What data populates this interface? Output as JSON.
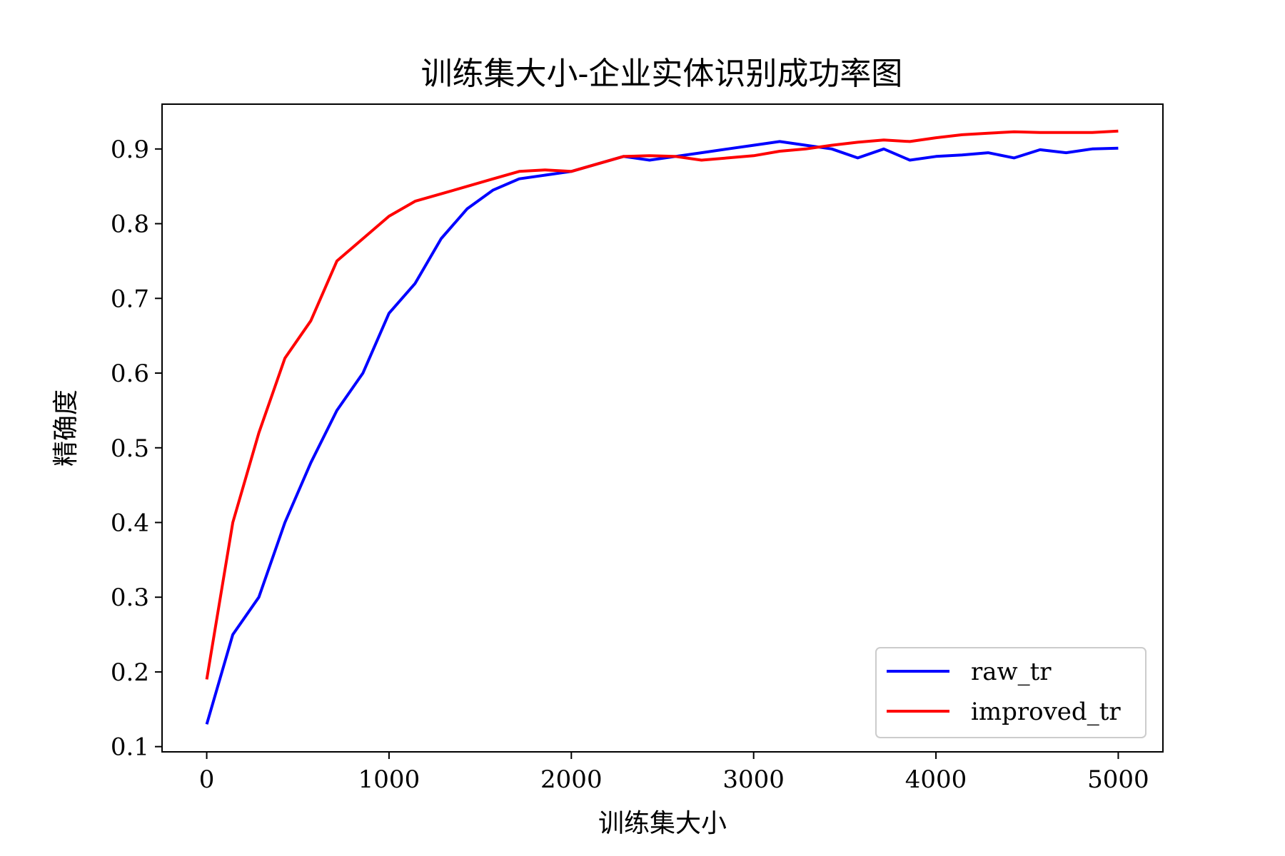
{
  "chart_data": {
    "type": "line",
    "title": "训练集大小-企业实体识别成功率图",
    "xlabel": "训练集大小",
    "ylabel": "精确度",
    "xlim": [
      -245,
      5245
    ],
    "ylim": [
      0.093,
      0.96
    ],
    "xticks": [
      0,
      1000,
      2000,
      3000,
      4000,
      5000
    ],
    "yticks": [
      0.1,
      0.2,
      0.3,
      0.4,
      0.5,
      0.6,
      0.7,
      0.8,
      0.9
    ],
    "grid": false,
    "legend_position": "lower-right",
    "series": [
      {
        "name": "raw_tr",
        "color": "#0000ff",
        "x": [
          0,
          143,
          286,
          429,
          571,
          714,
          857,
          1000,
          1143,
          1286,
          1429,
          1571,
          1714,
          1857,
          2000,
          2143,
          2286,
          2429,
          2571,
          2714,
          2857,
          3000,
          3143,
          3286,
          3429,
          3571,
          3714,
          3857,
          4000,
          4143,
          4286,
          4429,
          4571,
          4714,
          4857,
          5000
        ],
        "y": [
          0.13,
          0.25,
          0.3,
          0.4,
          0.48,
          0.55,
          0.6,
          0.68,
          0.72,
          0.78,
          0.82,
          0.845,
          0.86,
          0.865,
          0.87,
          0.88,
          0.89,
          0.885,
          0.89,
          0.895,
          0.9,
          0.905,
          0.91,
          0.905,
          0.9,
          0.888,
          0.9,
          0.885,
          0.89,
          0.892,
          0.895,
          0.888,
          0.899,
          0.895,
          0.9,
          0.901
        ]
      },
      {
        "name": "improved_tr",
        "color": "#ff0000",
        "x": [
          0,
          143,
          286,
          429,
          571,
          714,
          857,
          1000,
          1143,
          1286,
          1429,
          1571,
          1714,
          1857,
          2000,
          2143,
          2286,
          2429,
          2571,
          2714,
          2857,
          3000,
          3143,
          3286,
          3429,
          3571,
          3714,
          3857,
          4000,
          4143,
          4286,
          4429,
          4571,
          4714,
          4857,
          5000
        ],
        "y": [
          0.19,
          0.4,
          0.52,
          0.62,
          0.67,
          0.75,
          0.78,
          0.81,
          0.83,
          0.84,
          0.85,
          0.86,
          0.87,
          0.872,
          0.87,
          0.88,
          0.89,
          0.891,
          0.89,
          0.885,
          0.888,
          0.891,
          0.897,
          0.9,
          0.905,
          0.909,
          0.912,
          0.91,
          0.915,
          0.919,
          0.921,
          0.923,
          0.922,
          0.922,
          0.922,
          0.924
        ]
      }
    ]
  }
}
